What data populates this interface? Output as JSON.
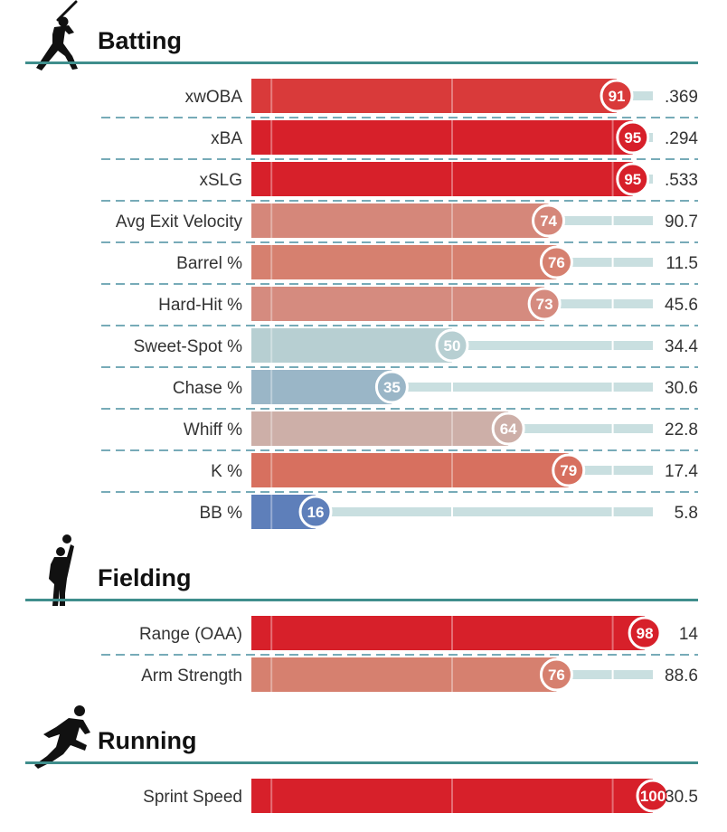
{
  "chart_data": {
    "type": "bar",
    "xlim": [
      0,
      100
    ],
    "sections": [
      {
        "title": "Batting",
        "icon": "batter-icon",
        "rows": [
          {
            "label": "xwOBA",
            "percentile": 91,
            "value": ".369",
            "color": "#d93a3a"
          },
          {
            "label": "xBA",
            "percentile": 95,
            "value": ".294",
            "color": "#d7202a"
          },
          {
            "label": "xSLG",
            "percentile": 95,
            "value": ".533",
            "color": "#d7202a"
          },
          {
            "label": "Avg Exit Velocity",
            "percentile": 74,
            "value": "90.7",
            "color": "#d5877a"
          },
          {
            "label": "Barrel %",
            "percentile": 76,
            "value": "11.5",
            "color": "#d6806f"
          },
          {
            "label": "Hard-Hit %",
            "percentile": 73,
            "value": "45.6",
            "color": "#d58b7f"
          },
          {
            "label": "Sweet-Spot %",
            "percentile": 50,
            "value": "34.4",
            "color": "#b7cfd2"
          },
          {
            "label": "Chase %",
            "percentile": 35,
            "value": "30.6",
            "color": "#9ab6c7"
          },
          {
            "label": "Whiff %",
            "percentile": 64,
            "value": "22.8",
            "color": "#cdafa8"
          },
          {
            "label": "K %",
            "percentile": 79,
            "value": "17.4",
            "color": "#d7705f"
          },
          {
            "label": "BB %",
            "percentile": 16,
            "value": "5.8",
            "color": "#5e7fba"
          }
        ]
      },
      {
        "title": "Fielding",
        "icon": "fielder-icon",
        "rows": [
          {
            "label": "Range (OAA)",
            "percentile": 98,
            "value": "14",
            "color": "#d7202a"
          },
          {
            "label": "Arm Strength",
            "percentile": 76,
            "value": "88.6",
            "color": "#d6806f"
          }
        ]
      },
      {
        "title": "Running",
        "icon": "runner-icon",
        "rows": [
          {
            "label": "Sprint Speed",
            "percentile": 100,
            "value": "30.5",
            "color": "#d7202a"
          }
        ]
      }
    ],
    "colors": {
      "track": "#c9dfe0",
      "section_rule": "#3f8e8c",
      "separator": "#4a8fa0"
    }
  }
}
